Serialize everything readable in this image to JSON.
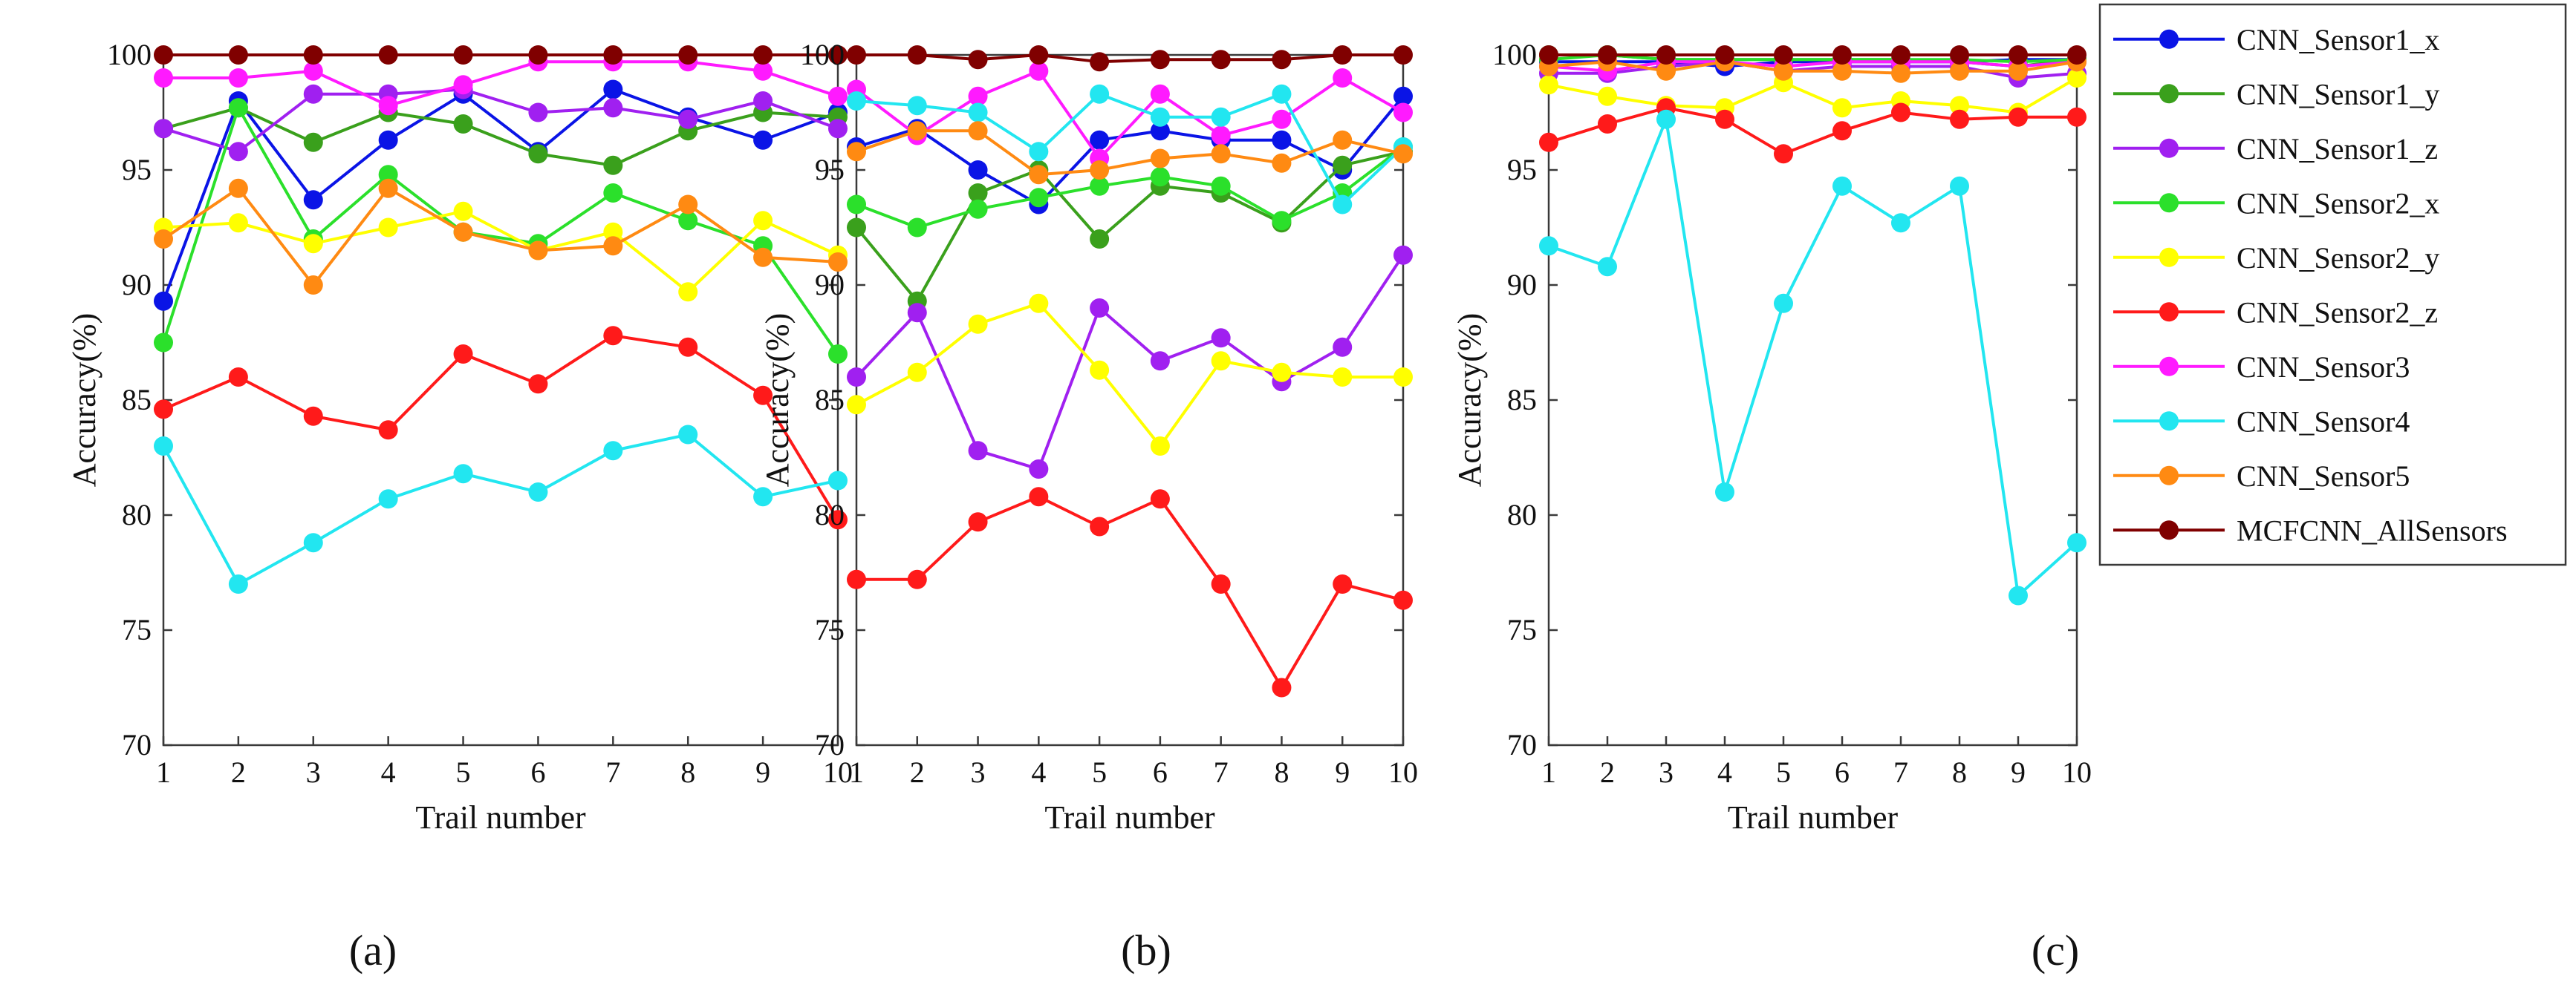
{
  "colors": {
    "CNN_Sensor1_x": "#0a14e6",
    "CNN_Sensor1_y": "#3aa01c",
    "CNN_Sensor1_z": "#a020f0",
    "CNN_Sensor2_x": "#2be02b",
    "CNN_Sensor2_y": "#ffff00",
    "CNN_Sensor2_z": "#ff1a1a",
    "CNN_Sensor3": "#ff1aff",
    "CNN_Sensor4": "#22e6f0",
    "CNN_Sensor5": "#ff8a12",
    "MCFCNN_AllSensors": "#800000"
  },
  "chart_data": [
    {
      "type": "line",
      "panel_label": "(a)",
      "xlabel": "Trail number",
      "ylabel": "Accuracy(%)",
      "x": [
        1,
        2,
        3,
        4,
        5,
        6,
        7,
        8,
        9,
        10
      ],
      "xlim": [
        1,
        10
      ],
      "ylim": [
        70,
        100
      ],
      "yticks": [
        70,
        75,
        80,
        85,
        90,
        95,
        100
      ],
      "legend": false,
      "series": [
        {
          "name": "CNN_Sensor1_x",
          "values": [
            89.3,
            98.0,
            93.7,
            96.3,
            98.3,
            95.8,
            98.5,
            97.3,
            96.3,
            97.5
          ]
        },
        {
          "name": "CNN_Sensor1_y",
          "values": [
            96.8,
            97.7,
            96.2,
            97.5,
            97.0,
            95.7,
            95.2,
            96.7,
            97.5,
            97.3
          ]
        },
        {
          "name": "CNN_Sensor1_z",
          "values": [
            96.8,
            95.8,
            98.3,
            98.3,
            98.5,
            97.5,
            97.7,
            97.2,
            98.0,
            96.8
          ]
        },
        {
          "name": "CNN_Sensor2_x",
          "values": [
            87.5,
            97.7,
            92.0,
            94.8,
            92.3,
            91.8,
            94.0,
            92.8,
            91.7,
            87.0
          ]
        },
        {
          "name": "CNN_Sensor2_y",
          "values": [
            92.5,
            92.7,
            91.8,
            92.5,
            93.2,
            91.5,
            92.3,
            89.7,
            92.8,
            91.3
          ]
        },
        {
          "name": "CNN_Sensor2_z",
          "values": [
            84.6,
            86.0,
            84.3,
            83.7,
            87.0,
            85.7,
            87.8,
            87.3,
            85.2,
            79.8
          ]
        },
        {
          "name": "CNN_Sensor3",
          "values": [
            99.0,
            99.0,
            99.3,
            97.8,
            98.7,
            99.7,
            99.7,
            99.7,
            99.3,
            98.2
          ]
        },
        {
          "name": "CNN_Sensor4",
          "values": [
            83.0,
            77.0,
            78.8,
            80.7,
            81.8,
            81.0,
            82.8,
            83.5,
            80.8,
            81.5
          ]
        },
        {
          "name": "CNN_Sensor5",
          "values": [
            92.0,
            94.2,
            90.0,
            94.2,
            92.3,
            91.5,
            91.7,
            93.5,
            91.2,
            91.0
          ]
        },
        {
          "name": "MCFCNN_AllSensors",
          "values": [
            100,
            100,
            100,
            100,
            100,
            100,
            100,
            100,
            100,
            100
          ]
        }
      ]
    },
    {
      "type": "line",
      "panel_label": "(b)",
      "xlabel": "Trail number",
      "ylabel": "Accuracy(%)",
      "x": [
        1,
        2,
        3,
        4,
        5,
        6,
        7,
        8,
        9,
        10
      ],
      "xlim": [
        1,
        10
      ],
      "ylim": [
        70,
        100
      ],
      "yticks": [
        70,
        75,
        80,
        85,
        90,
        95,
        100
      ],
      "legend": false,
      "series": [
        {
          "name": "CNN_Sensor1_x",
          "values": [
            96.0,
            96.8,
            95.0,
            93.5,
            96.3,
            96.7,
            96.3,
            96.3,
            95.0,
            98.2
          ]
        },
        {
          "name": "CNN_Sensor1_y",
          "values": [
            92.5,
            89.3,
            94.0,
            95.0,
            92.0,
            94.3,
            94.0,
            92.7,
            95.2,
            95.8
          ]
        },
        {
          "name": "CNN_Sensor1_z",
          "values": [
            86.0,
            88.8,
            82.8,
            82.0,
            89.0,
            86.7,
            87.7,
            85.8,
            87.3,
            91.3
          ]
        },
        {
          "name": "CNN_Sensor2_x",
          "values": [
            93.5,
            92.5,
            93.3,
            93.8,
            94.3,
            94.7,
            94.3,
            92.8,
            94.0,
            96.0
          ]
        },
        {
          "name": "CNN_Sensor2_y",
          "values": [
            84.8,
            86.2,
            88.3,
            89.2,
            86.3,
            83.0,
            86.7,
            86.2,
            86.0,
            86.0
          ]
        },
        {
          "name": "CNN_Sensor2_z",
          "values": [
            77.2,
            77.2,
            79.7,
            80.8,
            79.5,
            80.7,
            77.0,
            72.5,
            77.0,
            76.3
          ]
        },
        {
          "name": "CNN_Sensor3",
          "values": [
            98.5,
            96.5,
            98.2,
            99.3,
            95.5,
            98.3,
            96.5,
            97.2,
            99.0,
            97.5
          ]
        },
        {
          "name": "CNN_Sensor4",
          "values": [
            98.0,
            97.8,
            97.5,
            95.8,
            98.3,
            97.3,
            97.3,
            98.3,
            93.5,
            96.0
          ]
        },
        {
          "name": "CNN_Sensor5",
          "values": [
            95.8,
            96.7,
            96.7,
            94.8,
            95.0,
            95.5,
            95.7,
            95.3,
            96.3,
            95.7
          ]
        },
        {
          "name": "MCFCNN_AllSensors",
          "values": [
            100,
            100,
            99.8,
            100,
            99.7,
            99.8,
            99.8,
            99.8,
            100,
            100
          ]
        }
      ]
    },
    {
      "type": "line",
      "panel_label": "(c)",
      "xlabel": "Trail number",
      "ylabel": "Accuracy(%)",
      "x": [
        1,
        2,
        3,
        4,
        5,
        6,
        7,
        8,
        9,
        10
      ],
      "xlim": [
        1,
        10
      ],
      "ylim": [
        70,
        100
      ],
      "yticks": [
        70,
        75,
        80,
        85,
        90,
        95,
        100
      ],
      "legend": true,
      "series": [
        {
          "name": "CNN_Sensor1_x",
          "values": [
            99.7,
            99.7,
            99.7,
            99.5,
            99.7,
            99.7,
            99.7,
            99.7,
            99.8,
            99.8
          ]
        },
        {
          "name": "CNN_Sensor1_y",
          "values": [
            100,
            100,
            99.8,
            99.8,
            99.8,
            99.8,
            99.8,
            99.7,
            99.5,
            99.8
          ]
        },
        {
          "name": "CNN_Sensor1_z",
          "values": [
            99.2,
            99.2,
            99.5,
            99.7,
            99.3,
            99.5,
            99.5,
            99.5,
            99.0,
            99.2
          ]
        },
        {
          "name": "CNN_Sensor2_x",
          "values": [
            99.8,
            100,
            99.8,
            99.8,
            99.8,
            99.8,
            99.8,
            99.8,
            99.7,
            99.8
          ]
        },
        {
          "name": "CNN_Sensor2_y",
          "values": [
            98.7,
            98.2,
            97.8,
            97.7,
            98.8,
            97.7,
            98.0,
            97.8,
            97.5,
            99.0
          ]
        },
        {
          "name": "CNN_Sensor2_z",
          "values": [
            96.2,
            97.0,
            97.7,
            97.2,
            95.7,
            96.7,
            97.5,
            97.2,
            97.3,
            97.3
          ]
        },
        {
          "name": "CNN_Sensor3",
          "values": [
            99.5,
            99.3,
            99.7,
            99.7,
            99.5,
            99.7,
            99.7,
            99.7,
            99.5,
            99.7
          ]
        },
        {
          "name": "CNN_Sensor4",
          "values": [
            91.7,
            90.8,
            97.2,
            81.0,
            89.2,
            94.3,
            92.7,
            94.3,
            76.5,
            78.8
          ]
        },
        {
          "name": "CNN_Sensor5",
          "values": [
            99.5,
            99.7,
            99.3,
            99.7,
            99.3,
            99.3,
            99.2,
            99.3,
            99.3,
            99.7
          ]
        },
        {
          "name": "MCFCNN_AllSensors",
          "values": [
            100,
            100,
            100,
            100,
            100,
            100,
            100,
            100,
            100,
            100
          ]
        }
      ]
    }
  ]
}
